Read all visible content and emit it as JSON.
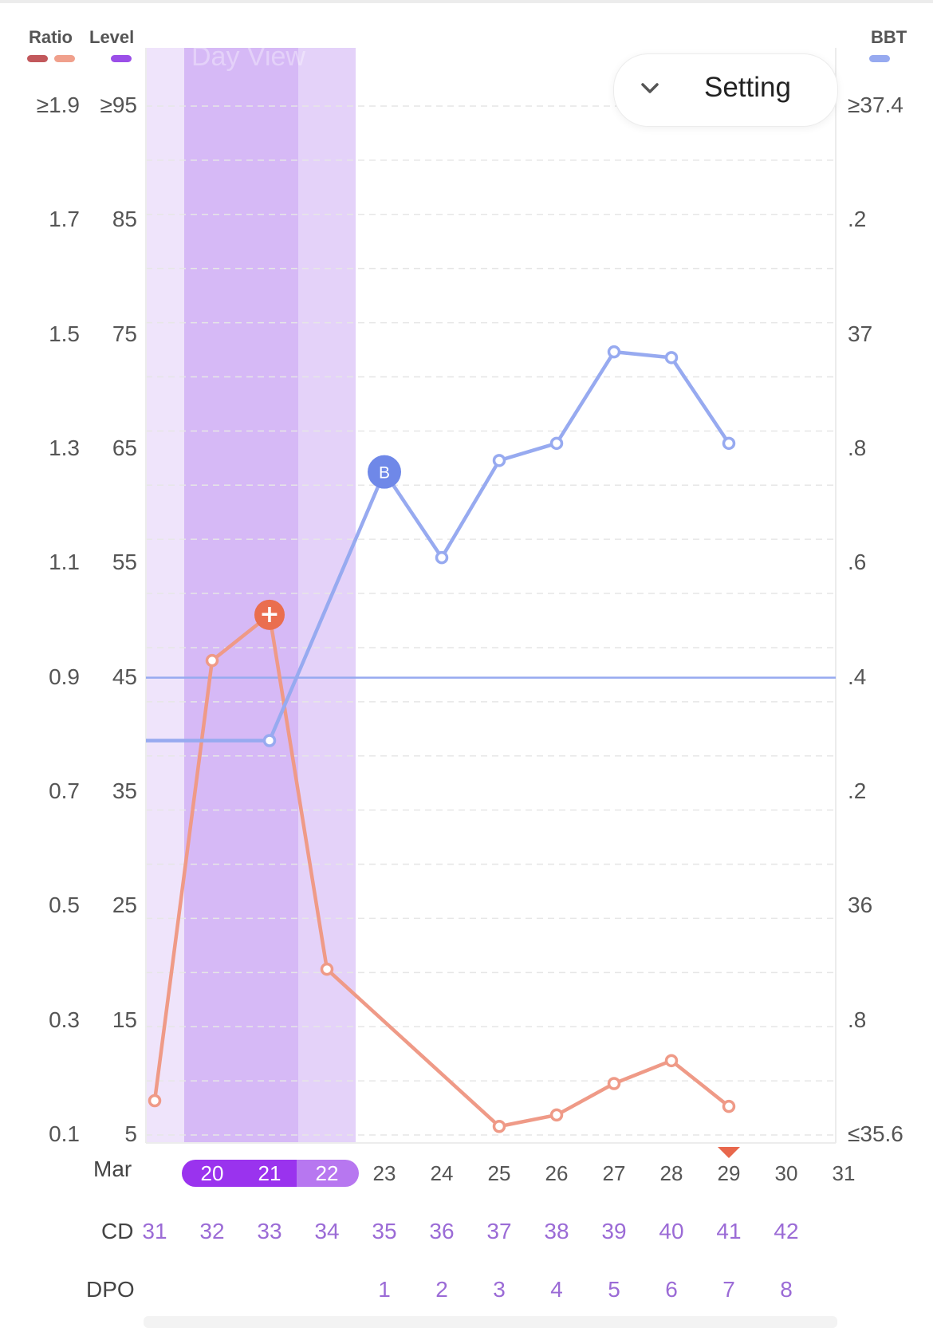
{
  "legend": {
    "ratio": {
      "label": "Ratio",
      "colors": [
        "#c2585c",
        "#f0a08c"
      ]
    },
    "level": {
      "label": "Level",
      "color": "#9b4fe8"
    },
    "bbt": {
      "label": "BBT",
      "color": "#97aaf0"
    }
  },
  "axes": {
    "ratio_ticks": [
      "≥1.9",
      "1.7",
      "1.5",
      "1.3",
      "1.1",
      "0.9",
      "0.7",
      "0.5",
      "0.3",
      "0.1"
    ],
    "level_ticks": [
      "≥95",
      "85",
      "75",
      "65",
      "55",
      "45",
      "35",
      "25",
      "15",
      "5"
    ],
    "bbt_ticks": [
      "≥37.4",
      ".2",
      "37",
      ".8",
      ".6",
      ".4",
      ".2",
      "36",
      ".8",
      "≤35.6"
    ]
  },
  "setting_button": {
    "label": "Setting",
    "icon": "chevron-down-icon"
  },
  "watermark": "Day View",
  "month_label": "Mar",
  "cd_title": "CD",
  "dpo_title": "DPO",
  "chart_data": {
    "type": "line",
    "x_dates": [
      "",
      "20",
      "21",
      "22",
      "23",
      "24",
      "25",
      "26",
      "27",
      "28",
      "29",
      "30",
      "31"
    ],
    "cycle_days": [
      "31",
      "32",
      "33",
      "34",
      "35",
      "36",
      "37",
      "38",
      "39",
      "40",
      "41",
      "42",
      ""
    ],
    "dpo": [
      "",
      "",
      "",
      "",
      "1",
      "2",
      "3",
      "4",
      "5",
      "6",
      "7",
      "8",
      ""
    ],
    "selected_dates": [
      "20",
      "21",
      "22"
    ],
    "fertile_highlight": {
      "light_from_index": 0,
      "dark_from_index": 1,
      "dark_to_index": 3,
      "light_to_index": 4
    },
    "series": [
      {
        "name": "Ratio",
        "color": "#ef9a87",
        "values": [
          0.16,
          0.93,
          1.01,
          null,
          null,
          null,
          null,
          null,
          null,
          null,
          null
        ],
        "points": [
          {
            "x": 0,
            "y": 0.16
          },
          {
            "x": 1,
            "y": 0.93
          },
          {
            "x": 2,
            "y": 1.01,
            "marker": "peak"
          },
          {
            "x": 3,
            "y": 0.39
          },
          {
            "x": 6,
            "y": 0.115
          },
          {
            "x": 7,
            "y": 0.135
          },
          {
            "x": 8,
            "y": 0.19
          },
          {
            "x": 9,
            "y": 0.23
          },
          {
            "x": 10,
            "y": 0.15
          }
        ]
      },
      {
        "name": "BBT",
        "color": "#97aaf0",
        "points": [
          {
            "x": -0.15,
            "y": 36.29
          },
          {
            "x": 2,
            "y": 36.29
          },
          {
            "x": 4,
            "y": 36.76,
            "marker": "B"
          },
          {
            "x": 5,
            "y": 36.61
          },
          {
            "x": 6,
            "y": 36.78
          },
          {
            "x": 7,
            "y": 36.81
          },
          {
            "x": 8,
            "y": 36.97
          },
          {
            "x": 9,
            "y": 36.96
          },
          {
            "x": 10,
            "y": 36.81
          }
        ]
      }
    ],
    "coverline": {
      "value": 36.4,
      "color": "#97aaf0"
    },
    "ratio_range": [
      0.1,
      1.9
    ],
    "level_range": [
      5,
      95
    ],
    "bbt_range": [
      35.6,
      37.4
    ],
    "today_marker_index": 10,
    "today_marker_color": "#e8674c",
    "peak_marker_color": "#ea6e4f",
    "b_marker_color": "#6f88e8",
    "b_marker_label": "B",
    "peak_marker_symbol": "+"
  }
}
